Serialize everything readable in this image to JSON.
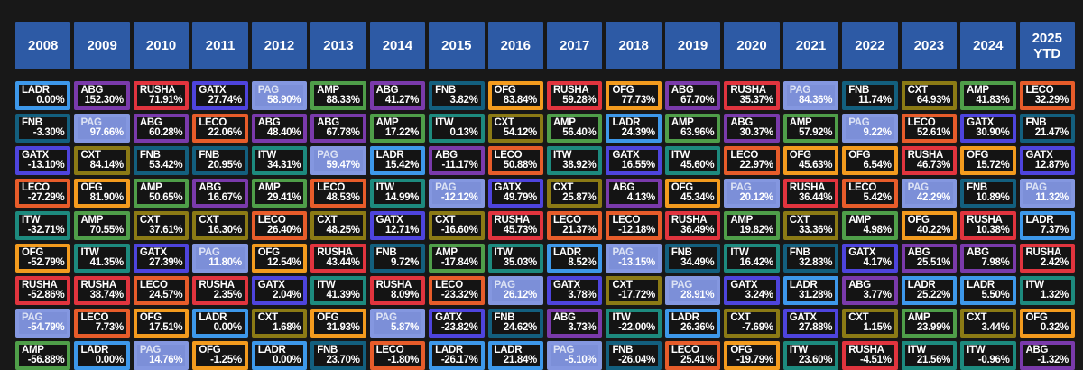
{
  "theme": {
    "page_bg": "#181818",
    "cell_bg": "#141414",
    "header_bg": "#2d5aa5",
    "text": "#ffffff"
  },
  "chart_data": {
    "type": "table",
    "description": "Annual total returns by ticker, ranked best-to-worst within each year column; bottom row partially cut off by viewport",
    "legend_position": "none",
    "highlight": {
      "ticker": "PAG",
      "cell_bg": "#7c8fd8",
      "border": "#8497e0",
      "ticker_text": "#dce2f4"
    },
    "ticker_colors": {
      "LADR": "#3d98ea",
      "ABG": "#7a3aab",
      "RUSHA": "#e1343e",
      "GATX": "#4e44dd",
      "PAG": "#8497e0",
      "AMP": "#4f9e49",
      "FNB": "#135f7e",
      "OFG": "#f39b1e",
      "CXT": "#8b7a15",
      "LECO": "#e75c2a",
      "ITW": "#1d8a7e"
    },
    "columns": [
      {
        "year": "2008",
        "cells": [
          {
            "t": "LADR",
            "v": "0.00%"
          },
          {
            "t": "FNB",
            "v": "-3.30%"
          },
          {
            "t": "GATX",
            "v": "-13.10%"
          },
          {
            "t": "LECO",
            "v": "-27.29%"
          },
          {
            "t": "ITW",
            "v": "-32.71%"
          },
          {
            "t": "OFG",
            "v": "-52.79%"
          },
          {
            "t": "RUSHA",
            "v": "-52.86%"
          },
          {
            "t": "PAG",
            "v": "-54.79%"
          },
          {
            "t": "AMP",
            "v": "-56.88%"
          }
        ]
      },
      {
        "year": "2009",
        "cells": [
          {
            "t": "ABG",
            "v": "152.30%"
          },
          {
            "t": "PAG",
            "v": "97.66%"
          },
          {
            "t": "CXT",
            "v": "84.14%"
          },
          {
            "t": "OFG",
            "v": "81.90%"
          },
          {
            "t": "AMP",
            "v": "70.55%"
          },
          {
            "t": "ITW",
            "v": "41.35%"
          },
          {
            "t": "RUSHA",
            "v": "38.74%"
          },
          {
            "t": "LECO",
            "v": "7.73%"
          },
          {
            "t": "LADR",
            "v": "0.00%"
          }
        ]
      },
      {
        "year": "2010",
        "cells": [
          {
            "t": "RUSHA",
            "v": "71.91%"
          },
          {
            "t": "ABG",
            "v": "60.28%"
          },
          {
            "t": "FNB",
            "v": "53.42%"
          },
          {
            "t": "AMP",
            "v": "50.65%"
          },
          {
            "t": "CXT",
            "v": "37.61%"
          },
          {
            "t": "GATX",
            "v": "27.39%"
          },
          {
            "t": "LECO",
            "v": "24.57%"
          },
          {
            "t": "OFG",
            "v": "17.51%"
          },
          {
            "t": "PAG",
            "v": "14.76%"
          }
        ]
      },
      {
        "year": "2011",
        "cells": [
          {
            "t": "GATX",
            "v": "27.74%"
          },
          {
            "t": "LECO",
            "v": "22.06%"
          },
          {
            "t": "FNB",
            "v": "20.95%"
          },
          {
            "t": "ABG",
            "v": "16.67%"
          },
          {
            "t": "CXT",
            "v": "16.30%"
          },
          {
            "t": "PAG",
            "v": "11.80%"
          },
          {
            "t": "RUSHA",
            "v": "2.35%"
          },
          {
            "t": "LADR",
            "v": "0.00%"
          },
          {
            "t": "OFG",
            "v": "-1.25%"
          }
        ]
      },
      {
        "year": "2012",
        "cells": [
          {
            "t": "PAG",
            "v": "58.90%"
          },
          {
            "t": "ABG",
            "v": "48.40%"
          },
          {
            "t": "ITW",
            "v": "34.31%"
          },
          {
            "t": "AMP",
            "v": "29.41%"
          },
          {
            "t": "LECO",
            "v": "26.40%"
          },
          {
            "t": "OFG",
            "v": "12.54%"
          },
          {
            "t": "GATX",
            "v": "2.04%"
          },
          {
            "t": "CXT",
            "v": "1.68%"
          },
          {
            "t": "LADR",
            "v": "0.00%"
          }
        ]
      },
      {
        "year": "2013",
        "cells": [
          {
            "t": "AMP",
            "v": "88.33%"
          },
          {
            "t": "ABG",
            "v": "67.78%"
          },
          {
            "t": "PAG",
            "v": "59.47%"
          },
          {
            "t": "LECO",
            "v": "48.53%"
          },
          {
            "t": "CXT",
            "v": "48.25%"
          },
          {
            "t": "RUSHA",
            "v": "43.44%"
          },
          {
            "t": "ITW",
            "v": "41.39%"
          },
          {
            "t": "OFG",
            "v": "31.93%"
          },
          {
            "t": "FNB",
            "v": "23.70%"
          }
        ]
      },
      {
        "year": "2014",
        "cells": [
          {
            "t": "ABG",
            "v": "41.27%"
          },
          {
            "t": "AMP",
            "v": "17.22%"
          },
          {
            "t": "LADR",
            "v": "15.42%"
          },
          {
            "t": "ITW",
            "v": "14.99%"
          },
          {
            "t": "GATX",
            "v": "12.71%"
          },
          {
            "t": "FNB",
            "v": "9.72%"
          },
          {
            "t": "RUSHA",
            "v": "8.09%"
          },
          {
            "t": "PAG",
            "v": "5.87%"
          },
          {
            "t": "LECO",
            "v": "-1.80%"
          }
        ]
      },
      {
        "year": "2015",
        "cells": [
          {
            "t": "FNB",
            "v": "3.82%"
          },
          {
            "t": "ITW",
            "v": "0.13%"
          },
          {
            "t": "ABG",
            "v": "-11.17%"
          },
          {
            "t": "PAG",
            "v": "-12.12%"
          },
          {
            "t": "CXT",
            "v": "-16.60%"
          },
          {
            "t": "AMP",
            "v": "-17.84%"
          },
          {
            "t": "LECO",
            "v": "-23.32%"
          },
          {
            "t": "GATX",
            "v": "-23.82%"
          },
          {
            "t": "LADR",
            "v": "-26.17%"
          }
        ]
      },
      {
        "year": "2016",
        "cells": [
          {
            "t": "OFG",
            "v": "83.84%"
          },
          {
            "t": "CXT",
            "v": "54.12%"
          },
          {
            "t": "LECO",
            "v": "50.88%"
          },
          {
            "t": "GATX",
            "v": "49.79%"
          },
          {
            "t": "RUSHA",
            "v": "45.73%"
          },
          {
            "t": "ITW",
            "v": "35.03%"
          },
          {
            "t": "PAG",
            "v": "26.12%"
          },
          {
            "t": "FNB",
            "v": "24.62%"
          },
          {
            "t": "LADR",
            "v": "21.84%"
          }
        ]
      },
      {
        "year": "2017",
        "cells": [
          {
            "t": "RUSHA",
            "v": "59.28%"
          },
          {
            "t": "AMP",
            "v": "56.40%"
          },
          {
            "t": "ITW",
            "v": "38.92%"
          },
          {
            "t": "CXT",
            "v": "25.87%"
          },
          {
            "t": "LECO",
            "v": "21.37%"
          },
          {
            "t": "LADR",
            "v": "8.52%"
          },
          {
            "t": "GATX",
            "v": "3.78%"
          },
          {
            "t": "ABG",
            "v": "3.73%"
          },
          {
            "t": "PAG",
            "v": "-5.10%"
          }
        ]
      },
      {
        "year": "2018",
        "cells": [
          {
            "t": "OFG",
            "v": "77.73%"
          },
          {
            "t": "LADR",
            "v": "24.39%"
          },
          {
            "t": "GATX",
            "v": "16.55%"
          },
          {
            "t": "ABG",
            "v": "4.13%"
          },
          {
            "t": "LECO",
            "v": "-12.18%"
          },
          {
            "t": "PAG",
            "v": "-13.15%"
          },
          {
            "t": "CXT",
            "v": "-17.72%"
          },
          {
            "t": "ITW",
            "v": "-22.00%"
          },
          {
            "t": "FNB",
            "v": "-26.04%"
          }
        ]
      },
      {
        "year": "2019",
        "cells": [
          {
            "t": "ABG",
            "v": "67.70%"
          },
          {
            "t": "AMP",
            "v": "63.96%"
          },
          {
            "t": "ITW",
            "v": "45.60%"
          },
          {
            "t": "OFG",
            "v": "45.34%"
          },
          {
            "t": "RUSHA",
            "v": "36.49%"
          },
          {
            "t": "FNB",
            "v": "34.49%"
          },
          {
            "t": "PAG",
            "v": "28.91%"
          },
          {
            "t": "LADR",
            "v": "26.36%"
          },
          {
            "t": "LECO",
            "v": "25.41%"
          }
        ]
      },
      {
        "year": "2020",
        "cells": [
          {
            "t": "RUSHA",
            "v": "35.37%"
          },
          {
            "t": "ABG",
            "v": "30.37%"
          },
          {
            "t": "LECO",
            "v": "22.97%"
          },
          {
            "t": "PAG",
            "v": "20.12%"
          },
          {
            "t": "AMP",
            "v": "19.82%"
          },
          {
            "t": "ITW",
            "v": "16.42%"
          },
          {
            "t": "GATX",
            "v": "3.24%"
          },
          {
            "t": "CXT",
            "v": "-7.69%"
          },
          {
            "t": "OFG",
            "v": "-19.79%"
          }
        ]
      },
      {
        "year": "2021",
        "cells": [
          {
            "t": "PAG",
            "v": "84.36%"
          },
          {
            "t": "AMP",
            "v": "57.92%"
          },
          {
            "t": "OFG",
            "v": "45.63%"
          },
          {
            "t": "RUSHA",
            "v": "36.44%"
          },
          {
            "t": "CXT",
            "v": "33.36%"
          },
          {
            "t": "FNB",
            "v": "32.83%"
          },
          {
            "t": "LADR",
            "v": "31.28%"
          },
          {
            "t": "GATX",
            "v": "27.88%"
          },
          {
            "t": "ITW",
            "v": "23.60%"
          }
        ]
      },
      {
        "year": "2022",
        "cells": [
          {
            "t": "FNB",
            "v": "11.74%"
          },
          {
            "t": "PAG",
            "v": "9.22%"
          },
          {
            "t": "OFG",
            "v": "6.54%"
          },
          {
            "t": "LECO",
            "v": "5.42%"
          },
          {
            "t": "AMP",
            "v": "4.98%"
          },
          {
            "t": "GATX",
            "v": "4.17%"
          },
          {
            "t": "ABG",
            "v": "3.77%"
          },
          {
            "t": "CXT",
            "v": "1.15%"
          },
          {
            "t": "RUSHA",
            "v": "-4.51%"
          }
        ]
      },
      {
        "year": "2023",
        "cells": [
          {
            "t": "CXT",
            "v": "64.93%"
          },
          {
            "t": "LECO",
            "v": "52.61%"
          },
          {
            "t": "RUSHA",
            "v": "46.73%"
          },
          {
            "t": "PAG",
            "v": "42.29%"
          },
          {
            "t": "OFG",
            "v": "40.22%"
          },
          {
            "t": "ABG",
            "v": "25.51%"
          },
          {
            "t": "LADR",
            "v": "25.22%"
          },
          {
            "t": "AMP",
            "v": "23.99%"
          },
          {
            "t": "ITW",
            "v": "21.56%"
          }
        ]
      },
      {
        "year": "2024",
        "cells": [
          {
            "t": "AMP",
            "v": "41.83%"
          },
          {
            "t": "GATX",
            "v": "30.90%"
          },
          {
            "t": "OFG",
            "v": "15.72%"
          },
          {
            "t": "FNB",
            "v": "10.89%"
          },
          {
            "t": "RUSHA",
            "v": "10.38%"
          },
          {
            "t": "ABG",
            "v": "7.98%"
          },
          {
            "t": "LADR",
            "v": "5.50%"
          },
          {
            "t": "CXT",
            "v": "3.44%"
          },
          {
            "t": "ITW",
            "v": "-0.96%"
          }
        ]
      },
      {
        "year": "2025 YTD",
        "cells": [
          {
            "t": "LECO",
            "v": "32.29%"
          },
          {
            "t": "FNB",
            "v": "21.47%"
          },
          {
            "t": "GATX",
            "v": "12.87%"
          },
          {
            "t": "PAG",
            "v": "11.32%"
          },
          {
            "t": "LADR",
            "v": "7.37%"
          },
          {
            "t": "RUSHA",
            "v": "2.42%"
          },
          {
            "t": "ITW",
            "v": "1.32%"
          },
          {
            "t": "OFG",
            "v": "0.32%"
          },
          {
            "t": "ABG",
            "v": "-1.32%"
          }
        ]
      }
    ]
  }
}
